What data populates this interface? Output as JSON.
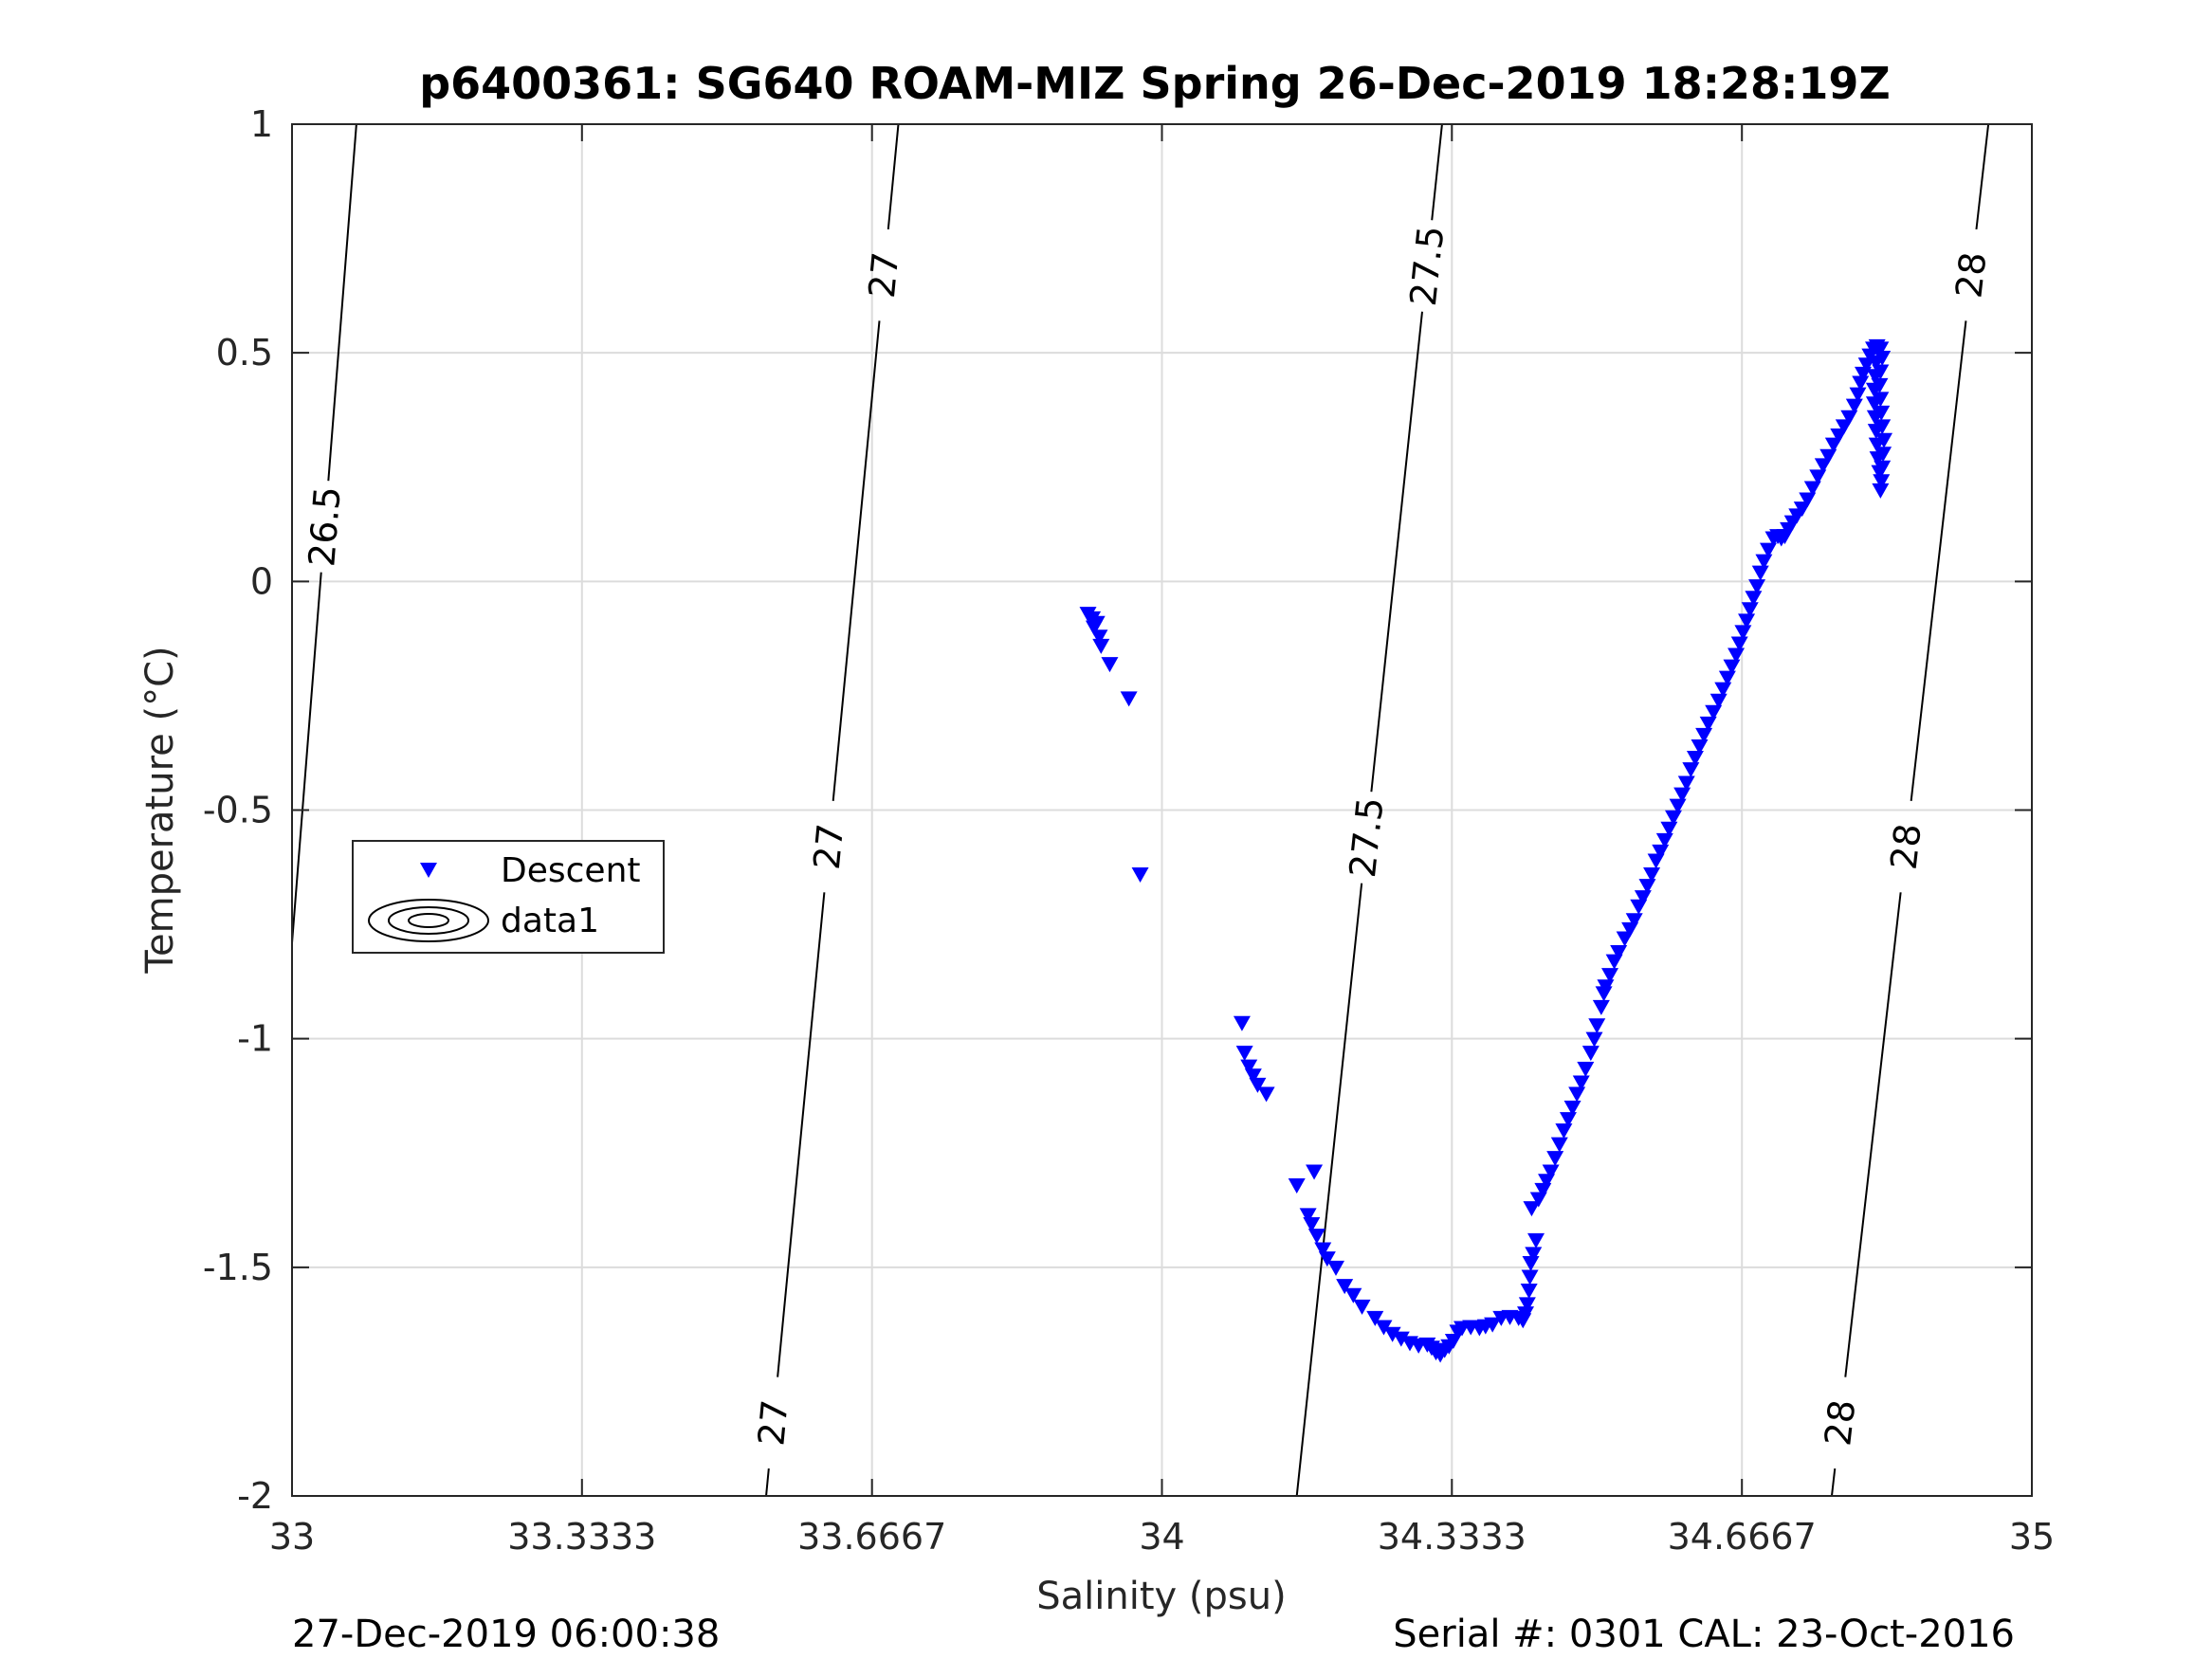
{
  "chart_data": {
    "type": "scatter",
    "title": "p6400361: SG640 ROAM-MIZ Spring 26-Dec-2019 18:28:19Z",
    "xlabel": "Salinity (psu)",
    "ylabel": "Temperature (°C)",
    "xlim": [
      33,
      35
    ],
    "ylim": [
      -2,
      1
    ],
    "xticks": [
      33,
      33.3333,
      33.6667,
      34,
      34.3333,
      34.6667,
      35
    ],
    "xtick_labels": [
      "33",
      "33.3333",
      "33.6667",
      "34",
      "34.3333",
      "34.6667",
      "35"
    ],
    "yticks": [
      -2,
      -1.5,
      -1,
      -0.5,
      0,
      0.5,
      1
    ],
    "ytick_labels": [
      "-2",
      "-1.5",
      "-1",
      "-0.5",
      "0",
      "0.5",
      "1"
    ],
    "grid": true,
    "legend_position": "middle-left",
    "legend": [
      "Descent",
      "data1"
    ],
    "series": [
      {
        "name": "Descent",
        "marker": "triangle-down",
        "color": "#0000ff",
        "points": [
          [
            33.915,
            -0.07
          ],
          [
            33.92,
            -0.08
          ],
          [
            33.925,
            -0.09
          ],
          [
            33.922,
            -0.1
          ],
          [
            33.928,
            -0.12
          ],
          [
            33.93,
            -0.14
          ],
          [
            33.94,
            -0.18
          ],
          [
            33.962,
            -0.255
          ],
          [
            33.975,
            -0.64
          ],
          [
            34.092,
            -0.965
          ],
          [
            34.095,
            -1.03
          ],
          [
            34.1,
            -1.06
          ],
          [
            34.105,
            -1.08
          ],
          [
            34.11,
            -1.1
          ],
          [
            34.12,
            -1.12
          ],
          [
            34.155,
            -1.32
          ],
          [
            34.175,
            -1.29
          ],
          [
            34.168,
            -1.385
          ],
          [
            34.172,
            -1.405
          ],
          [
            34.178,
            -1.43
          ],
          [
            34.185,
            -1.46
          ],
          [
            34.19,
            -1.48
          ],
          [
            34.2,
            -1.5
          ],
          [
            34.21,
            -1.54
          ],
          [
            34.22,
            -1.56
          ],
          [
            34.23,
            -1.585
          ],
          [
            34.245,
            -1.61
          ],
          [
            34.255,
            -1.63
          ],
          [
            34.265,
            -1.645
          ],
          [
            34.275,
            -1.655
          ],
          [
            34.285,
            -1.665
          ],
          [
            34.295,
            -1.67
          ],
          [
            34.305,
            -1.668
          ],
          [
            34.31,
            -1.675
          ],
          [
            34.315,
            -1.685
          ],
          [
            34.32,
            -1.69
          ],
          [
            34.325,
            -1.68
          ],
          [
            34.33,
            -1.672
          ],
          [
            34.335,
            -1.66
          ],
          [
            34.34,
            -1.64
          ],
          [
            34.345,
            -1.632
          ],
          [
            34.355,
            -1.63
          ],
          [
            34.365,
            -1.632
          ],
          [
            34.372,
            -1.628
          ],
          [
            34.38,
            -1.624
          ],
          [
            34.39,
            -1.61
          ],
          [
            34.4,
            -1.608
          ],
          [
            34.41,
            -1.61
          ],
          [
            34.415,
            -1.615
          ],
          [
            34.418,
            -1.6
          ],
          [
            34.42,
            -1.58
          ],
          [
            34.422,
            -1.55
          ],
          [
            34.423,
            -1.52
          ],
          [
            34.424,
            -1.49
          ],
          [
            34.427,
            -1.47
          ],
          [
            34.43,
            -1.44
          ],
          [
            34.425,
            -1.37
          ],
          [
            34.433,
            -1.35
          ],
          [
            34.438,
            -1.33
          ],
          [
            34.442,
            -1.31
          ],
          [
            34.447,
            -1.29
          ],
          [
            34.452,
            -1.26
          ],
          [
            34.457,
            -1.23
          ],
          [
            34.462,
            -1.2
          ],
          [
            34.467,
            -1.175
          ],
          [
            34.472,
            -1.15
          ],
          [
            34.477,
            -1.12
          ],
          [
            34.482,
            -1.095
          ],
          [
            34.487,
            -1.065
          ],
          [
            34.493,
            -1.03
          ],
          [
            34.497,
            -1.0
          ],
          [
            34.5,
            -0.97
          ],
          [
            34.505,
            -0.93
          ],
          [
            34.508,
            -0.9
          ],
          [
            34.51,
            -0.885
          ],
          [
            34.515,
            -0.86
          ],
          [
            34.52,
            -0.83
          ],
          [
            34.525,
            -0.81
          ],
          [
            34.532,
            -0.78
          ],
          [
            34.538,
            -0.76
          ],
          [
            34.543,
            -0.74
          ],
          [
            34.548,
            -0.71
          ],
          [
            34.553,
            -0.69
          ],
          [
            34.558,
            -0.665
          ],
          [
            34.563,
            -0.64
          ],
          [
            34.568,
            -0.61
          ],
          [
            34.573,
            -0.59
          ],
          [
            34.578,
            -0.565
          ],
          [
            34.583,
            -0.54
          ],
          [
            34.588,
            -0.515
          ],
          [
            34.593,
            -0.49
          ],
          [
            34.598,
            -0.465
          ],
          [
            34.603,
            -0.44
          ],
          [
            34.608,
            -0.41
          ],
          [
            34.613,
            -0.385
          ],
          [
            34.618,
            -0.36
          ],
          [
            34.623,
            -0.335
          ],
          [
            34.628,
            -0.31
          ],
          [
            34.634,
            -0.285
          ],
          [
            34.64,
            -0.26
          ],
          [
            34.645,
            -0.235
          ],
          [
            34.65,
            -0.21
          ],
          [
            34.655,
            -0.185
          ],
          [
            34.66,
            -0.16
          ],
          [
            34.664,
            -0.135
          ],
          [
            34.668,
            -0.11
          ],
          [
            34.672,
            -0.085
          ],
          [
            34.676,
            -0.06
          ],
          [
            34.68,
            -0.035
          ],
          [
            34.684,
            -0.01
          ],
          [
            34.688,
            0.02
          ],
          [
            34.692,
            0.045
          ],
          [
            34.697,
            0.07
          ],
          [
            34.703,
            0.095
          ],
          [
            34.708,
            0.1
          ],
          [
            34.712,
            0.095
          ],
          [
            34.716,
            0.1
          ],
          [
            34.72,
            0.115
          ],
          [
            34.725,
            0.13
          ],
          [
            34.73,
            0.145
          ],
          [
            34.736,
            0.16
          ],
          [
            34.742,
            0.18
          ],
          [
            34.748,
            0.205
          ],
          [
            34.754,
            0.23
          ],
          [
            34.76,
            0.255
          ],
          [
            34.766,
            0.275
          ],
          [
            34.772,
            0.3
          ],
          [
            34.778,
            0.32
          ],
          [
            34.784,
            0.34
          ],
          [
            34.79,
            0.36
          ],
          [
            34.796,
            0.385
          ],
          [
            34.8,
            0.41
          ],
          [
            34.803,
            0.435
          ],
          [
            34.806,
            0.455
          ],
          [
            34.81,
            0.475
          ],
          [
            34.814,
            0.495
          ],
          [
            34.818,
            0.51
          ],
          [
            34.822,
            0.515
          ],
          [
            34.826,
            0.51
          ],
          [
            34.828,
            0.49
          ],
          [
            34.826,
            0.46
          ],
          [
            34.825,
            0.43
          ],
          [
            34.826,
            0.4
          ],
          [
            34.827,
            0.37
          ],
          [
            34.828,
            0.34
          ],
          [
            34.83,
            0.31
          ],
          [
            34.829,
            0.28
          ],
          [
            34.828,
            0.25
          ],
          [
            34.827,
            0.22
          ],
          [
            34.826,
            0.2
          ],
          [
            34.825,
            0.24
          ],
          [
            34.823,
            0.27
          ],
          [
            34.822,
            0.3
          ],
          [
            34.821,
            0.33
          ],
          [
            34.82,
            0.36
          ],
          [
            34.819,
            0.39
          ],
          [
            34.819,
            0.42
          ],
          [
            34.82,
            0.45
          ],
          [
            34.821,
            0.48
          ]
        ]
      }
    ],
    "contours": [
      {
        "level": "26.5",
        "x_at_top": 33.074,
        "x_at_bottom": 32.95,
        "labels": [
          {
            "text": "26.5",
            "y": 0.12
          }
        ]
      },
      {
        "level": "27",
        "x_at_top": 33.697,
        "x_at_bottom": 33.545,
        "labels": [
          {
            "text": "27",
            "y": 0.67
          },
          {
            "text": "27",
            "y": -0.58
          },
          {
            "text": "27",
            "y": -1.84
          }
        ]
      },
      {
        "level": "27.5",
        "x_at_top": 34.322,
        "x_at_bottom": 34.155,
        "labels": [
          {
            "text": "27.5",
            "y": 0.69
          },
          {
            "text": "27.5",
            "y": -0.56
          }
        ]
      },
      {
        "level": "28",
        "x_at_top": 34.95,
        "x_at_bottom": 34.77,
        "labels": [
          {
            "text": "28",
            "y": 0.67
          },
          {
            "text": "28",
            "y": -0.58
          },
          {
            "text": "28",
            "y": -1.84
          }
        ]
      }
    ]
  },
  "footer": {
    "left": "27-Dec-2019 06:00:38",
    "right": "Serial #: 0301  CAL: 23-Oct-2016"
  },
  "colors": {
    "descent_marker": "#0000ff",
    "grid": "#dcdcdc",
    "axes": "#262626",
    "contour": "#000000"
  }
}
